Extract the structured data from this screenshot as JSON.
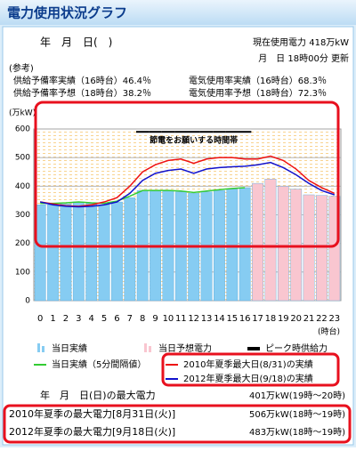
{
  "header": {
    "title": "電力使用状況グラフ",
    "date": "年　月　日(　)",
    "current_usage": "現在使用電力 418万kW",
    "updated": "月　日 18時00分 更新"
  },
  "reference": {
    "label": "(参考)",
    "items": [
      "供給予備率実績（16時台）46.4％",
      "電気使用率実績（16時台）68.3％",
      "供給予備率予想（18時台）38.2％",
      "電気使用率予想（18時台）72.3％"
    ]
  },
  "chart_data": {
    "type": "bar",
    "y_label": "(万kW)",
    "x_label": "(時台)",
    "annotation": "節電をお願いする時間帯",
    "categories": [
      "0",
      "1",
      "2",
      "3",
      "4",
      "5",
      "6",
      "7",
      "8",
      "9",
      "10",
      "11",
      "12",
      "13",
      "14",
      "15",
      "16",
      "17",
      "18",
      "19",
      "20",
      "21",
      "22",
      "23"
    ],
    "ylim": [
      0,
      600
    ],
    "yticks": [
      0,
      100,
      200,
      300,
      400,
      500,
      600
    ],
    "grid": true,
    "series": [
      {
        "name": "当日実績",
        "type": "bar",
        "color": "#86ccf2",
        "values": [
          335,
          335,
          338,
          345,
          340,
          335,
          345,
          360,
          385,
          383,
          383,
          380,
          375,
          380,
          385,
          390,
          395,
          null,
          null,
          null,
          null,
          null,
          null,
          null
        ]
      },
      {
        "name": "当日予想電力",
        "type": "bar",
        "color": "#f9c6d0",
        "values": [
          null,
          null,
          null,
          null,
          null,
          null,
          null,
          null,
          null,
          null,
          null,
          null,
          null,
          null,
          null,
          null,
          null,
          410,
          425,
          400,
          390,
          370,
          368,
          365
        ]
      },
      {
        "name": "ピーク時供給力",
        "type": "step",
        "color": "#000000",
        "values": [
          null,
          null,
          null,
          null,
          null,
          null,
          null,
          null,
          590,
          590,
          590,
          590,
          590,
          590,
          590,
          590,
          590,
          null,
          null,
          null,
          null,
          null,
          null,
          null
        ]
      },
      {
        "name": "当日実績（5分間隔値）",
        "type": "line",
        "color": "#33cc33",
        "values": [
          340,
          340,
          342,
          345,
          342,
          340,
          348,
          365,
          385,
          385,
          385,
          383,
          378,
          383,
          388,
          392,
          395,
          null,
          null,
          null,
          null,
          null,
          null,
          null
        ]
      },
      {
        "name": "2010年夏季最大日(8/31)の実績",
        "type": "line",
        "color": "#ee1111",
        "values": [
          345,
          338,
          332,
          330,
          335,
          345,
          360,
          400,
          450,
          475,
          490,
          495,
          480,
          495,
          500,
          500,
          495,
          495,
          505,
          490,
          460,
          420,
          395,
          375
        ]
      },
      {
        "name": "2012年夏季最大日(9/18)の実績",
        "type": "line",
        "color": "#1111cc",
        "values": [
          345,
          335,
          330,
          328,
          330,
          335,
          345,
          375,
          420,
          445,
          455,
          460,
          445,
          460,
          465,
          468,
          470,
          475,
          483,
          465,
          440,
          410,
          385,
          370
        ]
      }
    ]
  },
  "max_power": {
    "rows": [
      {
        "label": "年　月　日(日)の最大電力",
        "value": "401万kW(19時～20時)"
      },
      {
        "label": "2010年夏季の最大電力[8月31日(火)]",
        "value": "506万kW(18時～19時)"
      },
      {
        "label": "2012年夏季の最大電力[9月18日(火)]",
        "value": "483万kW(18時～19時)"
      }
    ]
  }
}
